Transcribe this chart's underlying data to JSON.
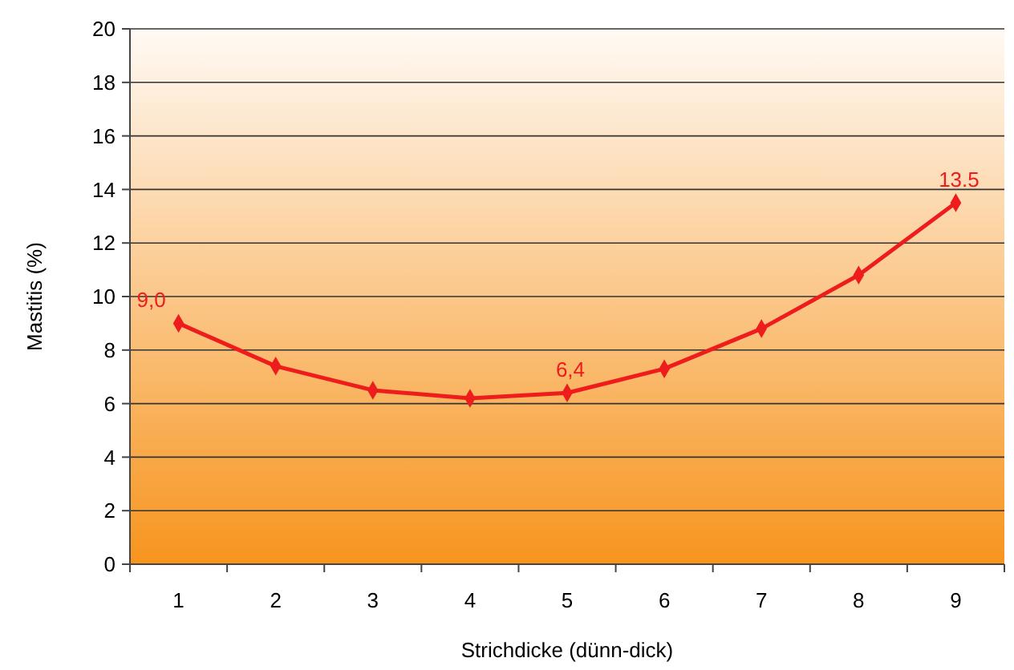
{
  "chart_data": {
    "type": "line",
    "xlabel": "Strichdicke (dünn-dick)",
    "ylabel": "Mastitis (%)",
    "categories": [
      "1",
      "2",
      "3",
      "4",
      "5",
      "6",
      "7",
      "8",
      "9"
    ],
    "series": [
      {
        "color": "#ee1c1c",
        "values": [
          9.0,
          7.4,
          6.5,
          6.2,
          6.4,
          7.3,
          8.8,
          10.8,
          13.5
        ],
        "value_labels": [
          "9,0",
          null,
          null,
          null,
          "6,4",
          null,
          null,
          null,
          "13.5"
        ]
      }
    ],
    "ylim": [
      0,
      20
    ],
    "yticks": [
      0,
      2,
      4,
      6,
      8,
      10,
      12,
      14,
      16,
      18,
      20
    ],
    "grid": "y",
    "marker": "diamond",
    "line_style": "solid"
  }
}
